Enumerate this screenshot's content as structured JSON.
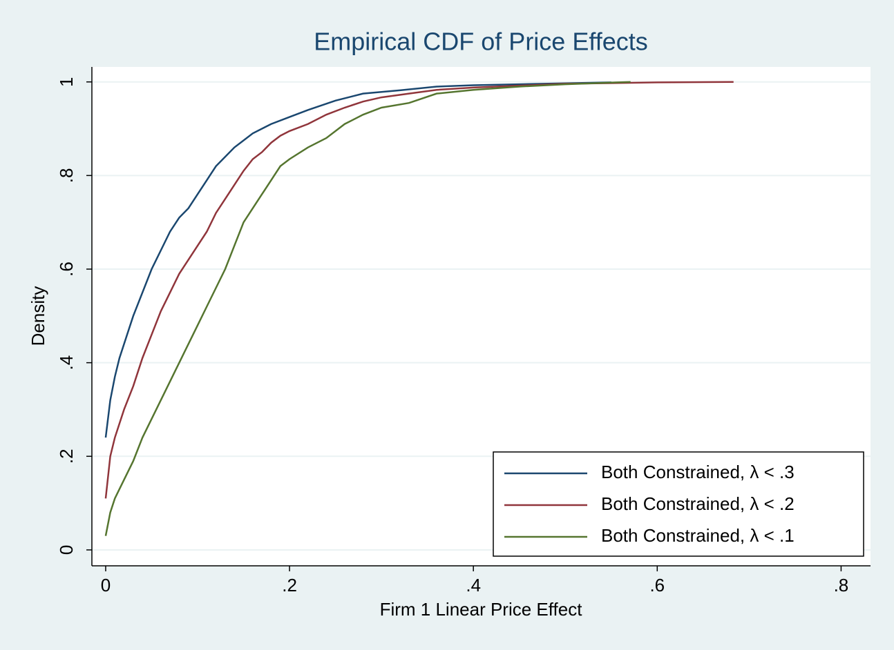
{
  "chart_data": {
    "type": "line",
    "title": "Empirical CDF of Price Effects",
    "x_label": "Firm 1 Linear Price Effect",
    "y_label": "Density",
    "xlim": [
      -0.015,
      0.832
    ],
    "ylim": [
      -0.034,
      1.032
    ],
    "xticks": [
      0,
      {
        "value": 0.2,
        "label": ".2"
      },
      {
        "value": 0.4,
        "label": ".4"
      },
      {
        "value": 0.6,
        "label": ".6"
      },
      {
        "value": 0.8,
        "label": ".8"
      }
    ],
    "yticks": [
      0,
      {
        "value": 0.2,
        "label": ".2"
      },
      {
        "value": 0.4,
        "label": ".4"
      },
      {
        "value": 0.6,
        "label": ".6"
      },
      {
        "value": 0.8,
        "label": ".8"
      },
      1
    ],
    "grid": true,
    "legend": "lower right",
    "series": [
      {
        "name": "Both Constrained, λ < .3",
        "color": "#1a476f",
        "x": [
          0,
          0.005,
          0.01,
          0.015,
          0.02,
          0.025,
          0.03,
          0.04,
          0.05,
          0.06,
          0.07,
          0.08,
          0.09,
          0.1,
          0.11,
          0.12,
          0.13,
          0.14,
          0.15,
          0.16,
          0.17,
          0.18,
          0.2,
          0.22,
          0.25,
          0.28,
          0.32,
          0.36,
          0.4,
          0.45,
          0.5,
          0.55
        ],
        "values": [
          0.24,
          0.32,
          0.37,
          0.41,
          0.44,
          0.47,
          0.5,
          0.55,
          0.6,
          0.64,
          0.68,
          0.71,
          0.73,
          0.76,
          0.79,
          0.82,
          0.84,
          0.86,
          0.875,
          0.89,
          0.9,
          0.91,
          0.925,
          0.94,
          0.96,
          0.975,
          0.982,
          0.99,
          0.993,
          0.995,
          0.997,
          0.999
        ]
      },
      {
        "name": "Both Constrained, λ < .2",
        "color": "#90353b",
        "x": [
          0,
          0.005,
          0.01,
          0.02,
          0.03,
          0.04,
          0.05,
          0.06,
          0.07,
          0.08,
          0.09,
          0.1,
          0.11,
          0.12,
          0.13,
          0.14,
          0.15,
          0.16,
          0.17,
          0.18,
          0.19,
          0.2,
          0.22,
          0.24,
          0.26,
          0.28,
          0.3,
          0.33,
          0.36,
          0.4,
          0.45,
          0.5,
          0.6,
          0.683
        ],
        "values": [
          0.11,
          0.2,
          0.24,
          0.3,
          0.35,
          0.41,
          0.46,
          0.51,
          0.55,
          0.59,
          0.62,
          0.65,
          0.68,
          0.72,
          0.75,
          0.78,
          0.81,
          0.835,
          0.85,
          0.87,
          0.885,
          0.895,
          0.91,
          0.93,
          0.945,
          0.958,
          0.967,
          0.975,
          0.983,
          0.988,
          0.992,
          0.996,
          0.999,
          1.0
        ]
      },
      {
        "name": "Both Constrained, λ < .1",
        "color": "#55752f",
        "x": [
          0,
          0.005,
          0.01,
          0.02,
          0.03,
          0.04,
          0.05,
          0.06,
          0.07,
          0.08,
          0.09,
          0.1,
          0.11,
          0.12,
          0.13,
          0.14,
          0.15,
          0.16,
          0.17,
          0.18,
          0.19,
          0.2,
          0.22,
          0.24,
          0.26,
          0.28,
          0.3,
          0.33,
          0.36,
          0.4,
          0.45,
          0.5,
          0.571
        ],
        "values": [
          0.03,
          0.08,
          0.11,
          0.15,
          0.19,
          0.24,
          0.28,
          0.32,
          0.36,
          0.4,
          0.44,
          0.48,
          0.52,
          0.56,
          0.6,
          0.65,
          0.7,
          0.73,
          0.76,
          0.79,
          0.82,
          0.835,
          0.86,
          0.88,
          0.91,
          0.93,
          0.945,
          0.955,
          0.975,
          0.983,
          0.99,
          0.995,
          1.0
        ]
      }
    ]
  }
}
